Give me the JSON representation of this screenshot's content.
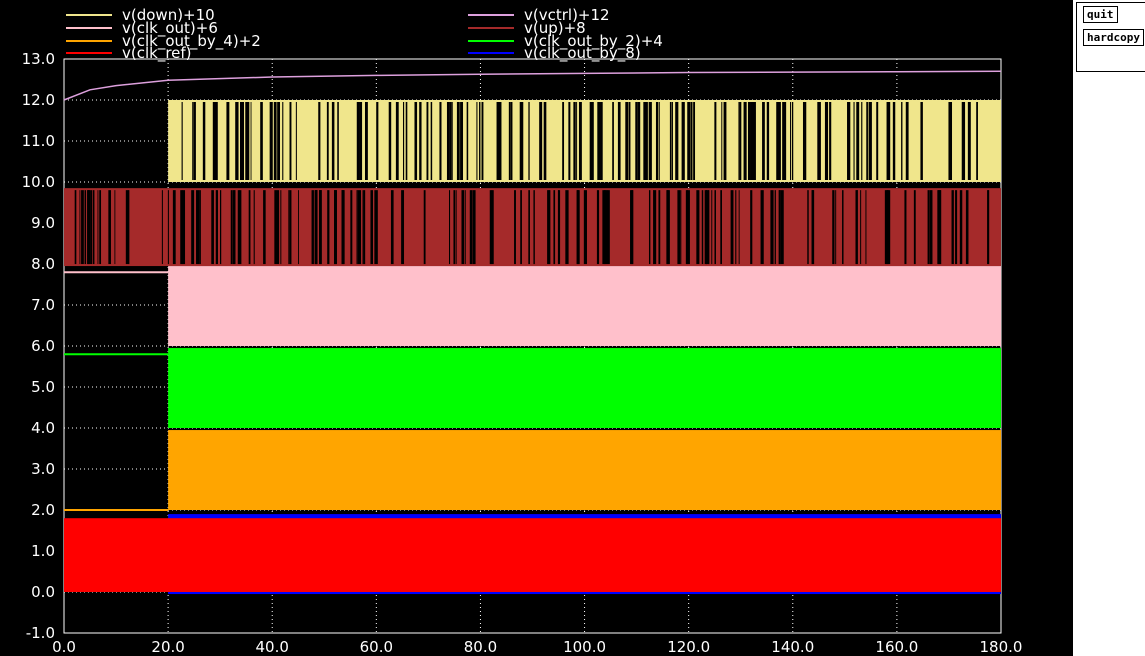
{
  "buttons": {
    "quit": "quit",
    "hardcopy": "hardcopy"
  },
  "chart_data": {
    "type": "line",
    "background": "#000000",
    "grid": true,
    "grid_color": "#ffffff",
    "xlim": [
      0,
      180
    ],
    "ylim": [
      -1,
      13
    ],
    "xticks": [
      "0.0",
      "20.0",
      "40.0",
      "60.0",
      "80.0",
      "100.0",
      "120.0",
      "140.0",
      "160.0",
      "180.0"
    ],
    "yticks": [
      "-1.0",
      "0.0",
      "1.0",
      "2.0",
      "3.0",
      "4.0",
      "5.0",
      "6.0",
      "7.0",
      "8.0",
      "9.0",
      "10.0",
      "11.0",
      "12.0",
      "13.0"
    ],
    "legend_position": "top",
    "series": [
      {
        "name": "v(down)+10",
        "color": "#f0e68c",
        "low": 10,
        "high": 12,
        "start_x": 20
      },
      {
        "name": "v(vctrl)+12",
        "color": "#dda0dd",
        "points": [
          [
            0,
            12.0
          ],
          [
            5,
            12.25
          ],
          [
            10,
            12.35
          ],
          [
            20,
            12.48
          ],
          [
            40,
            12.56
          ],
          [
            60,
            12.6
          ],
          [
            80,
            12.63
          ],
          [
            100,
            12.65
          ],
          [
            120,
            12.67
          ],
          [
            140,
            12.68
          ],
          [
            160,
            12.69
          ],
          [
            180,
            12.7
          ]
        ]
      },
      {
        "name": "v(clk_out)+6",
        "color": "#ffc0cb",
        "low": 6,
        "high": 7.95,
        "start_x": 20,
        "pre_value": 7.8
      },
      {
        "name": "v(up)+8",
        "color": "#a52a2a",
        "low": 7.95,
        "high": 9.85,
        "start_x": 0
      },
      {
        "name": "v(clk_out_by_4)+2",
        "color": "#ffa500",
        "low": 2,
        "high": 3.95,
        "start_x": 20,
        "pre_value": 2.0
      },
      {
        "name": "v(clk_out_by_2)+4",
        "color": "#00ff00",
        "low": 4,
        "high": 5.95,
        "start_x": 20,
        "pre_value": 5.8
      },
      {
        "name": "v(clk_ref)",
        "color": "#ff0000",
        "low": 0,
        "high": 1.8,
        "start_x": 0
      },
      {
        "name": "v(clk_out_by_8)",
        "color": "#0000ff",
        "low": -0.05,
        "high": 1.9,
        "start_x": 20
      }
    ]
  }
}
